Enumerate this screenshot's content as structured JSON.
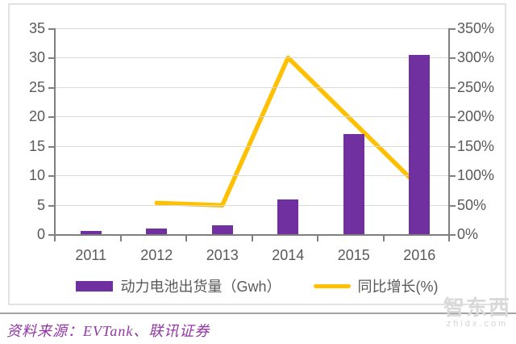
{
  "chart_data": {
    "type": "bar",
    "subtype": "combo-bar-line",
    "categories": [
      "2011",
      "2012",
      "2013",
      "2014",
      "2015",
      "2016"
    ],
    "series": [
      {
        "name": "动力电池出货量（Gwh）",
        "type": "bar",
        "axis": "left",
        "color": "#7030a0",
        "values": [
          0.5,
          1.0,
          1.5,
          5.9,
          17.0,
          30.5
        ]
      },
      {
        "name": "同比增长(%)",
        "type": "line",
        "axis": "right",
        "color": "#ffc000",
        "values": [
          null,
          53,
          49,
          300,
          190,
          80
        ]
      }
    ],
    "left_axis": {
      "min": 0,
      "max": 35,
      "step": 5,
      "tick_labels_top_to_bottom": [
        "35",
        "30",
        "25",
        "20",
        "15",
        "10",
        "5",
        "0"
      ]
    },
    "right_axis": {
      "min": 0,
      "max": 350,
      "step": 50,
      "tick_labels_top_to_bottom": [
        "350%",
        "300%",
        "250%",
        "200%",
        "150%",
        "100%",
        "50%",
        "0%"
      ]
    },
    "grid": true,
    "legend_position": "bottom",
    "title": ""
  },
  "legend": {
    "bar_label": "动力电池出货量（Gwh）",
    "line_label": "同比增长(%)"
  },
  "source": {
    "text": "资料来源：EVTank、联讯证券"
  },
  "watermark": {
    "logo": "智东西",
    "url": "zhidx.com"
  },
  "colors": {
    "bar": "#7030a0",
    "line": "#ffc000",
    "axis_text": "#595959",
    "gridline": "#d9d9d9",
    "axis_line": "#7f7f7f",
    "frame_border": "#e2e2e2",
    "separator": "#a3a3a3",
    "source_text": "#9136a5",
    "watermark": "#d9d9d9"
  }
}
